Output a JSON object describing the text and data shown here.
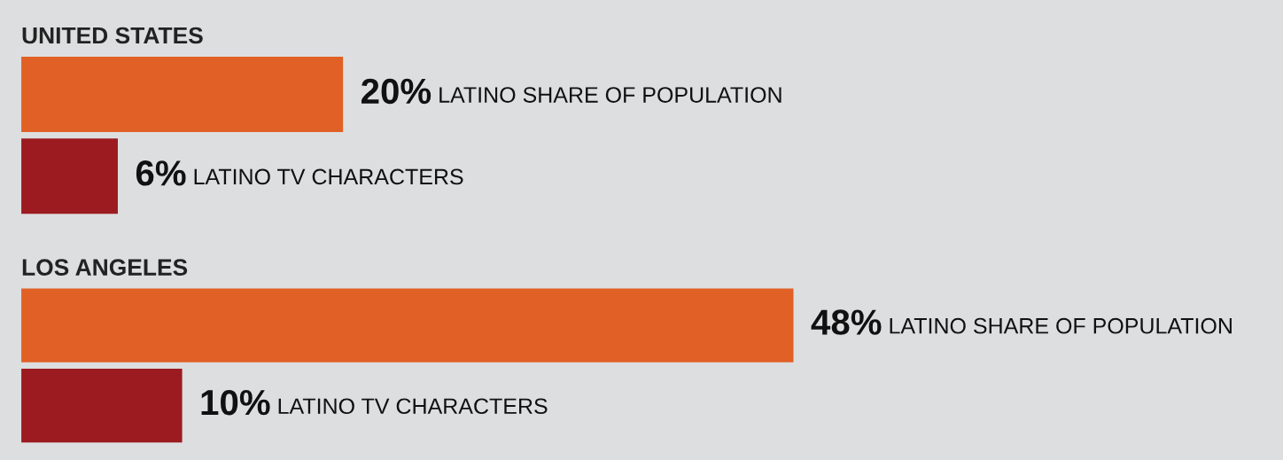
{
  "chart_data": [
    {
      "type": "bar",
      "orientation": "horizontal",
      "title": "UNITED STATES",
      "categories": [
        null,
        null
      ],
      "xlim": [
        0,
        78
      ],
      "tick_labels": false,
      "values": [
        20,
        6
      ],
      "colors": [
        "#e06026",
        "#9b1b20"
      ],
      "value_labels": [
        "20%",
        "6%"
      ],
      "annotations": [
        "LATINO SHARE OF POPULATION",
        "LATINO TV CHARACTERS"
      ]
    },
    {
      "type": "bar",
      "orientation": "horizontal",
      "title": "LOS ANGELES",
      "categories": [
        null,
        null
      ],
      "xlim": [
        0,
        78
      ],
      "tick_labels": false,
      "values": [
        48,
        10
      ],
      "colors": [
        "#e06026",
        "#9b1b20"
      ],
      "value_labels": [
        "48%",
        "10%"
      ],
      "annotations": [
        "LATINO SHARE OF POPULATION",
        "LATINO TV CHARACTERS"
      ]
    }
  ]
}
